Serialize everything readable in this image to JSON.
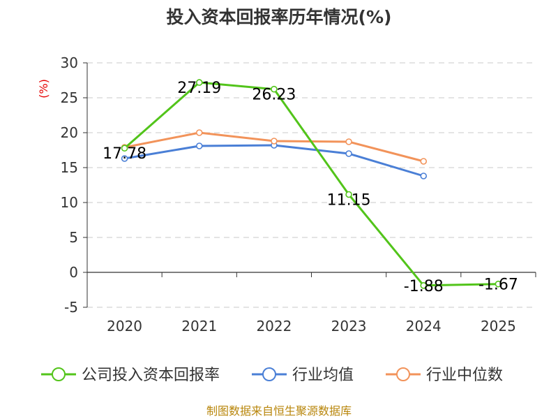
{
  "chart_data": {
    "type": "line",
    "title": "投入资本回报率历年情况(%)",
    "ylabel": "(%)",
    "xlabel": "",
    "categories": [
      "2020",
      "2021",
      "2022",
      "2023",
      "2024",
      "2025"
    ],
    "ylim": [
      -5,
      30
    ],
    "yticks": [
      30,
      25,
      20,
      15,
      10,
      5,
      0,
      -5
    ],
    "grid": true,
    "legend_position": "bottom",
    "series": [
      {
        "name": "公司投入资本回报率",
        "color": "#52c41a",
        "values": [
          17.78,
          27.19,
          26.23,
          11.15,
          -1.88,
          -1.67
        ],
        "labels": [
          "17.78",
          "27.19",
          "26.23",
          "11.15",
          "-1.88",
          "-1.67"
        ]
      },
      {
        "name": "行业均值",
        "color": "#4a7fd6",
        "values": [
          16.3,
          18.1,
          18.2,
          17.0,
          13.8,
          null
        ]
      },
      {
        "name": "行业中位数",
        "color": "#f2935a",
        "values": [
          17.9,
          20.0,
          18.8,
          18.7,
          15.9,
          null
        ]
      }
    ]
  },
  "source": "制图数据来自恒生聚源数据库"
}
